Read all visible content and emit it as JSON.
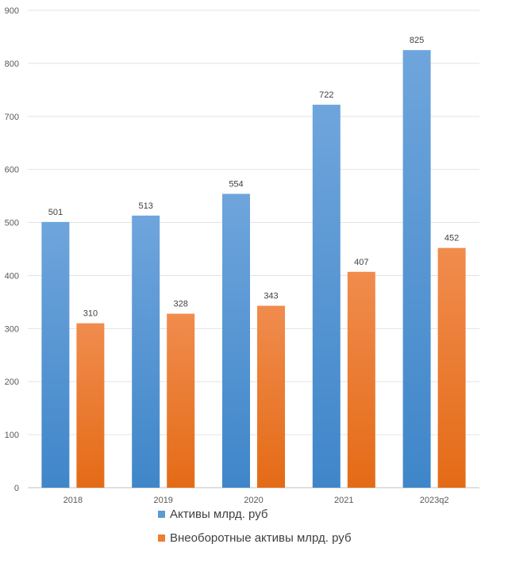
{
  "chart_data": {
    "type": "bar",
    "categories": [
      "2018",
      "2019",
      "2020",
      "2021",
      "2023q2"
    ],
    "series": [
      {
        "name": "Активы млрд. руб",
        "values": [
          501,
          513,
          554,
          722,
          825
        ],
        "color": "#5B9BD5"
      },
      {
        "name": "Внеоборотные активы млрд. руб",
        "values": [
          310,
          328,
          343,
          407,
          452
        ],
        "color": "#ED7D31"
      }
    ],
    "ylim": [
      0,
      900
    ],
    "yticks": [
      0,
      100,
      200,
      300,
      400,
      500,
      600,
      700,
      800,
      900
    ],
    "grid": true,
    "legend": "bottom"
  }
}
